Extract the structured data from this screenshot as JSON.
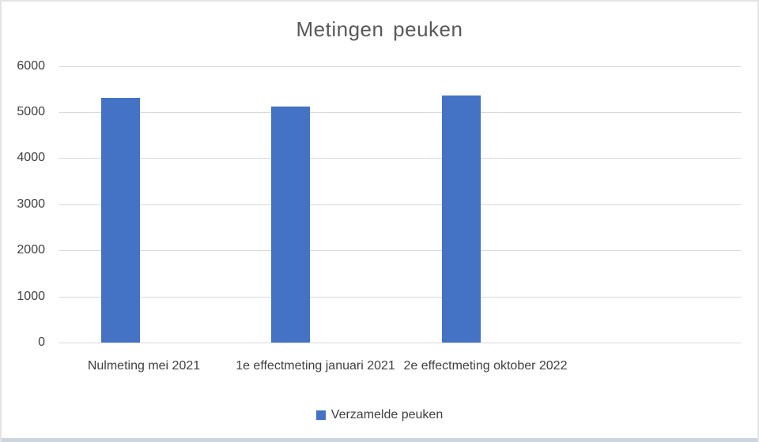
{
  "chart_data": {
    "type": "bar",
    "title": "Metingen peuken",
    "categories": [
      "Nulmeting mei 2021",
      "1e effectmeting januari 2021",
      "2e effectmeting oktober 2022"
    ],
    "series": [
      {
        "name": "Verzamelde peuken",
        "values": [
          5300,
          5120,
          5360
        ]
      }
    ],
    "xlabel": "",
    "ylabel": "",
    "ylim": [
      0,
      6000
    ],
    "yticks": [
      0,
      1000,
      2000,
      3000,
      4000,
      5000,
      6000
    ],
    "grid": true,
    "legend_position": "bottom",
    "colors": {
      "bar": "#4472C4",
      "gridline": "#d9d9d9",
      "axis_text": "#404040",
      "title_text": "#595959",
      "bottom_strip": "#ccd5e0"
    }
  },
  "legend": {
    "label": "Verzamelde peuken"
  }
}
